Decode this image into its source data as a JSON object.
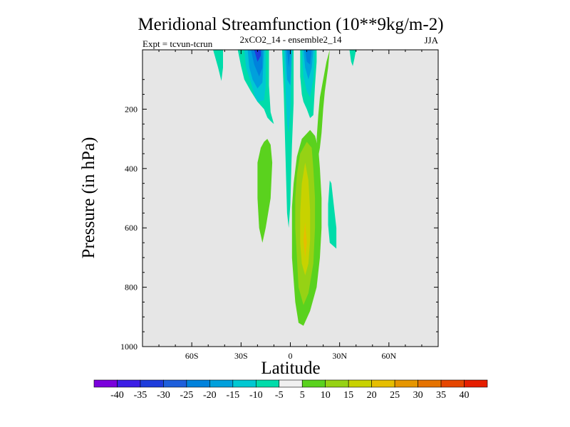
{
  "chart_data": {
    "type": "heatmap",
    "title": "Meridional Streamfunction (10**9kg/m-2)",
    "subtitle_left": "Expt = tcvun-tcrun",
    "subtitle_center": "2xCO2_14 - ensemble2_14",
    "subtitle_right": "JJA",
    "xlabel": "Latitude",
    "ylabel": "Pressure (in hPa)",
    "xlim": [
      -90,
      90
    ],
    "ylim": [
      0,
      1000
    ],
    "y_inverted": true,
    "x_ticks": [
      {
        "value": -60,
        "label": "60S"
      },
      {
        "value": -30,
        "label": "30S"
      },
      {
        "value": 0,
        "label": "0"
      },
      {
        "value": 30,
        "label": "30N"
      },
      {
        "value": 60,
        "label": "60N"
      }
    ],
    "y_ticks": [
      {
        "value": 200,
        "label": "200"
      },
      {
        "value": 400,
        "label": "400"
      },
      {
        "value": 600,
        "label": "600"
      },
      {
        "value": 800,
        "label": "800"
      },
      {
        "value": 1000,
        "label": "1000"
      }
    ],
    "background_color": "#e6e6e6",
    "colorbar": {
      "colors": [
        "#7a00dc",
        "#3c1ee6",
        "#1e3cdc",
        "#1e5fdc",
        "#0082dc",
        "#00a0dc",
        "#00c8d2",
        "#00dcaa",
        "#f0f0f0",
        "#5ad21e",
        "#96d214",
        "#c8d200",
        "#e6be00",
        "#e69600",
        "#e67300",
        "#e64600",
        "#e61e00"
      ],
      "labels": [
        "-40",
        "-35",
        "-30",
        "-25",
        "-20",
        "-15",
        "-10",
        "-5",
        "5",
        "10",
        "15",
        "20",
        "25",
        "30",
        "35",
        "40"
      ]
    },
    "regions": [
      {
        "level": -5,
        "points": [
          [
            -32,
            0
          ],
          [
            -30,
            55
          ],
          [
            -28,
            100
          ],
          [
            -24,
            140
          ],
          [
            -20,
            175
          ],
          [
            -16,
            200
          ],
          [
            -14,
            228
          ],
          [
            -12,
            240
          ],
          [
            -10,
            250
          ],
          [
            -12,
            210
          ],
          [
            -13,
            120
          ],
          [
            -13,
            0
          ]
        ]
      },
      {
        "level": -10,
        "points": [
          [
            -28,
            0
          ],
          [
            -27,
            60
          ],
          [
            -24,
            110
          ],
          [
            -22,
            150
          ],
          [
            -20,
            175
          ],
          [
            -16,
            170
          ],
          [
            -15,
            120
          ],
          [
            -15,
            0
          ]
        ]
      },
      {
        "level": -15,
        "points": [
          [
            -26,
            0
          ],
          [
            -25,
            60
          ],
          [
            -23,
            100
          ],
          [
            -20,
            130
          ],
          [
            -17,
            110
          ],
          [
            -16,
            0
          ]
        ]
      },
      {
        "level": -20,
        "points": [
          [
            -24,
            0
          ],
          [
            -22,
            50
          ],
          [
            -19,
            90
          ],
          [
            -17,
            60
          ],
          [
            -17,
            0
          ]
        ]
      },
      {
        "level": -30,
        "points": [
          [
            -22,
            0
          ],
          [
            -20,
            40
          ],
          [
            -18,
            20
          ],
          [
            -18,
            0
          ]
        ]
      },
      {
        "level": -5,
        "points": [
          [
            -5,
            0
          ],
          [
            -4,
            150
          ],
          [
            -3,
            350
          ],
          [
            -2,
            550
          ],
          [
            -1,
            600
          ],
          [
            0,
            520
          ],
          [
            1,
            320
          ],
          [
            2,
            180
          ],
          [
            2,
            0
          ]
        ]
      },
      {
        "level": -5,
        "points": [
          [
            6,
            0
          ],
          [
            6,
            90
          ],
          [
            7,
            150
          ],
          [
            8,
            175
          ],
          [
            10,
            200
          ],
          [
            12,
            230
          ],
          [
            14,
            220
          ],
          [
            15,
            120
          ],
          [
            16,
            40
          ],
          [
            16,
            0
          ]
        ]
      },
      {
        "level": -10,
        "points": [
          [
            -4,
            0
          ],
          [
            -3,
            120
          ],
          [
            -2,
            250
          ],
          [
            -1,
            280
          ],
          [
            0,
            200
          ],
          [
            1,
            0
          ]
        ]
      },
      {
        "level": -10,
        "points": [
          [
            7,
            0
          ],
          [
            8,
            90
          ],
          [
            10,
            140
          ],
          [
            12,
            160
          ],
          [
            14,
            100
          ],
          [
            15,
            0
          ]
        ]
      },
      {
        "level": -15,
        "points": [
          [
            -3,
            0
          ],
          [
            -2,
            100
          ],
          [
            0,
            120
          ],
          [
            1,
            0
          ]
        ]
      },
      {
        "level": -15,
        "points": [
          [
            8,
            0
          ],
          [
            9,
            60
          ],
          [
            11,
            100
          ],
          [
            13,
            60
          ],
          [
            14,
            0
          ]
        ]
      },
      {
        "level": -20,
        "points": [
          [
            -2,
            0
          ],
          [
            -1,
            60
          ],
          [
            0,
            0
          ]
        ]
      },
      {
        "level": -20,
        "points": [
          [
            9,
            0
          ],
          [
            10,
            40
          ],
          [
            12,
            50
          ],
          [
            13,
            0
          ]
        ]
      },
      {
        "level": -5,
        "points": [
          [
            -47,
            0
          ],
          [
            -44,
            60
          ],
          [
            -42,
            105
          ],
          [
            -41,
            60
          ],
          [
            -41,
            0
          ]
        ]
      },
      {
        "level": -5,
        "points": [
          [
            36,
            0
          ],
          [
            37,
            40
          ],
          [
            38,
            55
          ],
          [
            39,
            30
          ],
          [
            40,
            0
          ]
        ]
      },
      {
        "level": -5,
        "points": [
          [
            24,
            440
          ],
          [
            23,
            520
          ],
          [
            23,
            590
          ],
          [
            24,
            650
          ],
          [
            28,
            670
          ],
          [
            28,
            600
          ],
          [
            26,
            500
          ],
          [
            25,
            450
          ]
        ]
      },
      {
        "level": 5,
        "points": [
          [
            -18,
            330
          ],
          [
            -20,
            380
          ],
          [
            -20,
            500
          ],
          [
            -19,
            600
          ],
          [
            -17,
            650
          ],
          [
            -15,
            600
          ],
          [
            -12,
            500
          ],
          [
            -11,
            380
          ],
          [
            -12,
            320
          ],
          [
            -14,
            300
          ],
          [
            -16,
            310
          ]
        ]
      },
      {
        "level": 5,
        "points": [
          [
            12,
            270
          ],
          [
            7,
            300
          ],
          [
            4,
            360
          ],
          [
            2,
            450
          ],
          [
            1,
            530
          ],
          [
            1,
            620
          ],
          [
            1,
            700
          ],
          [
            3,
            850
          ],
          [
            5,
            920
          ],
          [
            8,
            930
          ],
          [
            12,
            880
          ],
          [
            16,
            800
          ],
          [
            18,
            700
          ],
          [
            19,
            600
          ],
          [
            19,
            500
          ],
          [
            18,
            400
          ],
          [
            17,
            330
          ],
          [
            15,
            290
          ]
        ]
      },
      {
        "level": 5,
        "points": [
          [
            17,
            360
          ],
          [
            16,
            300
          ],
          [
            17,
            220
          ],
          [
            18,
            160
          ],
          [
            20,
            100
          ],
          [
            22,
            40
          ],
          [
            24,
            0
          ],
          [
            23,
            60
          ],
          [
            21,
            140
          ],
          [
            20,
            200
          ],
          [
            19,
            280
          ],
          [
            18,
            330
          ]
        ]
      },
      {
        "level": 10,
        "points": [
          [
            10,
            310
          ],
          [
            6,
            350
          ],
          [
            4,
            420
          ],
          [
            3,
            500
          ],
          [
            3,
            600
          ],
          [
            4,
            700
          ],
          [
            5,
            800
          ],
          [
            8,
            860
          ],
          [
            11,
            820
          ],
          [
            14,
            720
          ],
          [
            15,
            600
          ],
          [
            15,
            500
          ],
          [
            14,
            400
          ],
          [
            13,
            330
          ]
        ]
      },
      {
        "level": 15,
        "points": [
          [
            9,
            380
          ],
          [
            7,
            450
          ],
          [
            6,
            550
          ],
          [
            6,
            650
          ],
          [
            7,
            720
          ],
          [
            9,
            760
          ],
          [
            11,
            720
          ],
          [
            12,
            640
          ],
          [
            12,
            540
          ],
          [
            11,
            440
          ]
        ]
      },
      {
        "level": 20,
        "points": [
          [
            9,
            580
          ],
          [
            8,
            640
          ],
          [
            9,
            700
          ],
          [
            10,
            650
          ]
        ]
      }
    ]
  }
}
